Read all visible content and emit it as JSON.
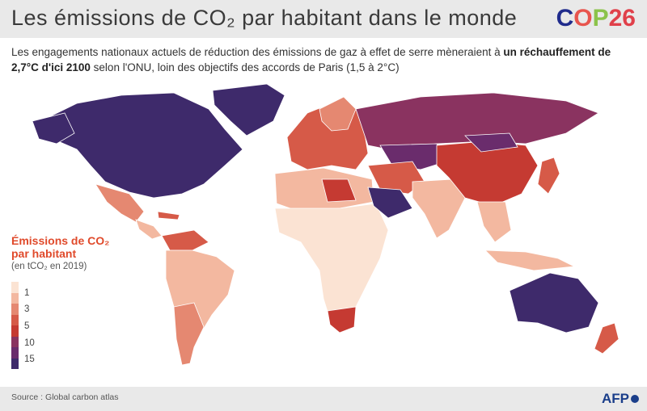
{
  "header": {
    "title": "Les émissions de CO₂ par habitant dans le monde",
    "logo_text": "COP26"
  },
  "subtitle": {
    "part1": "Les engagements nationaux actuels de réduction des émissions de gaz à effet de serre mèneraient à ",
    "bold": "un réchauffement de 2,7°C d'ici 2100",
    "part2": " selon l'ONU, loin des objectifs des accords de Paris (1,5 à 2°C)"
  },
  "legend": {
    "title": "Émissions de CO₂ par habitant",
    "unit": "(en tCO₂ en 2019)",
    "ticks": [
      "1",
      "3",
      "5",
      "10",
      "15"
    ],
    "colors": [
      "#fbe3d3",
      "#f3b8a0",
      "#e58871",
      "#d65a48",
      "#c53a32",
      "#8a3360",
      "#6a2c6c",
      "#3e2a6b"
    ]
  },
  "footer": {
    "source": "Source : Global carbon atlas",
    "credit": "AFP"
  },
  "regions": {
    "north_america": "#3e2a6b",
    "greenland": "#3e2a6b",
    "mexico": "#e58871",
    "central_america": "#f3b8a0",
    "south_america": "#f3b8a0",
    "argentina": "#e58871",
    "venezuela": "#d65a48",
    "africa": "#fbe3d3",
    "north_africa": "#f3b8a0",
    "libya": "#c53a32",
    "south_africa": "#c53a32",
    "europe": "#d65a48",
    "russia": "#8a3360",
    "middle_east": "#d65a48",
    "saudi_arabia": "#3e2a6b",
    "kazakhstan": "#6a2c6c",
    "china": "#c53a32",
    "india": "#f3b8a0",
    "southeast_asia": "#f3b8a0",
    "japan": "#d65a48",
    "australia": "#3e2a6b",
    "new_zealand": "#d65a48",
    "indonesia": "#f3b8a0"
  }
}
